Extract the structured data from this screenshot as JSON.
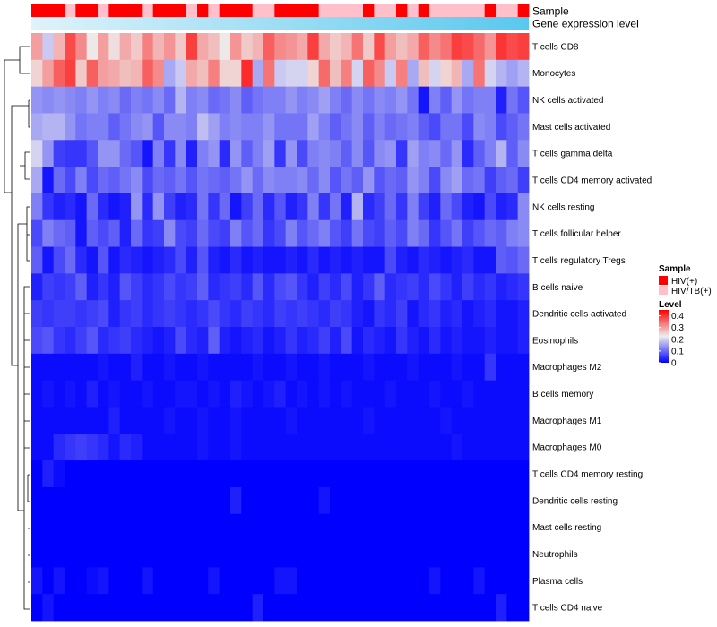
{
  "chart_data": {
    "type": "heatmap",
    "title": "",
    "annotations": [
      {
        "name": "Sample",
        "type": "categorical"
      },
      {
        "name": "Gene expression level",
        "type": "gradient",
        "from": "#dff3fb",
        "to": "#5ac8ee"
      }
    ],
    "rows": [
      "T cells CD8",
      "Monocytes",
      "NK cells activated",
      "Mast cells activated",
      "T cells gamma delta",
      "T cells CD4 memory activated",
      "NK cells resting",
      "T cells follicular helper",
      "T cells regulatory  Tregs",
      "B cells naive",
      "Dendritic cells activated",
      "Eosinophils",
      "Macrophages M2",
      "B cells memory",
      "Macrophages M1",
      "Macrophages M0",
      "T cells CD4 memory resting",
      "Dendritic cells resting",
      "Mast cells resting",
      "Neutrophils",
      "Plasma cells",
      "T cells CD4 naive"
    ],
    "sample_groups": "HHHLHHLHHHLHHHLHLHHHLLHHHHLLLLHLLHLHLLLLLHLLH",
    "legend": {
      "sample": {
        "title": "Sample",
        "entries": [
          {
            "label": "HIV(+)",
            "color": "#ff0000"
          },
          {
            "label": "HIV/TB(+)",
            "color": "#ffc0cb"
          }
        ]
      },
      "level": {
        "title": "Level",
        "ticks": [
          "0.4",
          "0.3",
          "0.2",
          "0.1",
          "0"
        ],
        "range": [
          0,
          0.45
        ],
        "colors": [
          "#0000ff",
          "#eeeeee",
          "#ff0000"
        ]
      }
    },
    "values": [
      [
        0.3,
        0.19,
        0.28,
        0.38,
        0.32,
        0.23,
        0.3,
        0.24,
        0.29,
        0.26,
        0.33,
        0.28,
        0.31,
        0.26,
        0.39,
        0.29,
        0.27,
        0.23,
        0.31,
        0.26,
        0.28,
        0.36,
        0.32,
        0.31,
        0.29,
        0.39,
        0.29,
        0.26,
        0.28,
        0.34,
        0.26,
        0.38,
        0.3,
        0.27,
        0.29,
        0.36,
        0.32,
        0.34,
        0.39,
        0.38,
        0.35,
        0.31,
        0.4,
        0.38,
        0.39
      ],
      [
        0.25,
        0.3,
        0.36,
        0.39,
        0.26,
        0.36,
        0.3,
        0.29,
        0.27,
        0.28,
        0.36,
        0.32,
        0.16,
        0.19,
        0.29,
        0.27,
        0.33,
        0.25,
        0.25,
        0.41,
        0.16,
        0.34,
        0.19,
        0.2,
        0.2,
        0.25,
        0.35,
        0.27,
        0.33,
        0.2,
        0.36,
        0.32,
        0.19,
        0.33,
        0.16,
        0.27,
        0.2,
        0.25,
        0.28,
        0.16,
        0.34,
        0.2,
        0.17,
        0.15,
        0.17
      ],
      [
        0.14,
        0.13,
        0.14,
        0.13,
        0.12,
        0.14,
        0.12,
        0.13,
        0.1,
        0.12,
        0.11,
        0.13,
        0.1,
        0.17,
        0.12,
        0.13,
        0.1,
        0.11,
        0.13,
        0.09,
        0.11,
        0.12,
        0.12,
        0.14,
        0.12,
        0.13,
        0.15,
        0.12,
        0.1,
        0.13,
        0.11,
        0.13,
        0.12,
        0.14,
        0.11,
        0.02,
        0.12,
        0.09,
        0.14,
        0.11,
        0.12,
        0.12,
        0.03,
        0.11,
        0.08
      ],
      [
        0.16,
        0.17,
        0.17,
        0.14,
        0.11,
        0.12,
        0.12,
        0.09,
        0.11,
        0.13,
        0.14,
        0.08,
        0.13,
        0.13,
        0.12,
        0.18,
        0.15,
        0.12,
        0.13,
        0.12,
        0.12,
        0.14,
        0.11,
        0.11,
        0.11,
        0.15,
        0.12,
        0.09,
        0.11,
        0.13,
        0.09,
        0.12,
        0.1,
        0.11,
        0.12,
        0.09,
        0.07,
        0.11,
        0.11,
        0.07,
        0.13,
        0.12,
        0.07,
        0.09,
        0.11
      ],
      [
        0.2,
        0.14,
        0.06,
        0.05,
        0.05,
        0.08,
        0.14,
        0.14,
        0.1,
        0.08,
        0.02,
        0.12,
        0.05,
        0.13,
        0.03,
        0.12,
        0.14,
        0.04,
        0.14,
        0.09,
        0.12,
        0.15,
        0.05,
        0.14,
        0.07,
        0.12,
        0.13,
        0.12,
        0.09,
        0.13,
        0.08,
        0.13,
        0.14,
        0.05,
        0.15,
        0.12,
        0.13,
        0.1,
        0.14,
        0.04,
        0.09,
        0.12,
        0.17,
        0.09,
        0.13
      ],
      [
        0.16,
        0.02,
        0.1,
        0.07,
        0.12,
        0.07,
        0.1,
        0.09,
        0.11,
        0.13,
        0.07,
        0.1,
        0.09,
        0.11,
        0.08,
        0.11,
        0.1,
        0.09,
        0.11,
        0.14,
        0.1,
        0.13,
        0.12,
        0.12,
        0.13,
        0.1,
        0.13,
        0.08,
        0.11,
        0.09,
        0.14,
        0.08,
        0.1,
        0.09,
        0.14,
        0.12,
        0.07,
        0.13,
        0.15,
        0.1,
        0.11,
        0.06,
        0.09,
        0.1,
        0.06
      ],
      [
        0.12,
        0.05,
        0.03,
        0.04,
        0.02,
        0.1,
        0.04,
        0.02,
        0.03,
        0.14,
        0.04,
        0.14,
        0.06,
        0.03,
        0.04,
        0.11,
        0.05,
        0.1,
        0.02,
        0.06,
        0.1,
        0.04,
        0.08,
        0.03,
        0.05,
        0.12,
        0.05,
        0.11,
        0.03,
        0.17,
        0.04,
        0.06,
        0.1,
        0.05,
        0.12,
        0.06,
        0.03,
        0.1,
        0.07,
        0.03,
        0.02,
        0.07,
        0.03,
        0.04,
        0.13
      ],
      [
        0.07,
        0.12,
        0.1,
        0.09,
        0.02,
        0.09,
        0.07,
        0.09,
        0.03,
        0.1,
        0.05,
        0.06,
        0.13,
        0.07,
        0.06,
        0.1,
        0.07,
        0.06,
        0.12,
        0.08,
        0.1,
        0.05,
        0.07,
        0.12,
        0.08,
        0.1,
        0.12,
        0.08,
        0.06,
        0.11,
        0.07,
        0.06,
        0.09,
        0.07,
        0.12,
        0.1,
        0.05,
        0.08,
        0.11,
        0.06,
        0.08,
        0.1,
        0.09,
        0.12,
        0.13
      ],
      [
        0.09,
        0.02,
        0.07,
        0.1,
        0.04,
        0.02,
        0.08,
        0.02,
        0.04,
        0.03,
        0.02,
        0.03,
        0.04,
        0.07,
        0.03,
        0.08,
        0.03,
        0.02,
        0.04,
        0.02,
        0.03,
        0.02,
        0.02,
        0.03,
        0.02,
        0.04,
        0.02,
        0.03,
        0.02,
        0.03,
        0.02,
        0.02,
        0.07,
        0.03,
        0.02,
        0.04,
        0.03,
        0.02,
        0.03,
        0.04,
        0.02,
        0.02,
        0.09,
        0.08,
        0.1
      ],
      [
        0.03,
        0.06,
        0.05,
        0.06,
        0.09,
        0.03,
        0.05,
        0.03,
        0.08,
        0.06,
        0.04,
        0.05,
        0.07,
        0.05,
        0.06,
        0.09,
        0.04,
        0.05,
        0.06,
        0.04,
        0.08,
        0.04,
        0.07,
        0.08,
        0.05,
        0.03,
        0.06,
        0.04,
        0.07,
        0.03,
        0.05,
        0.09,
        0.04,
        0.05,
        0.06,
        0.04,
        0.07,
        0.05,
        0.03,
        0.06,
        0.04,
        0.05,
        0.03,
        0.04,
        0.05
      ],
      [
        0.06,
        0.05,
        0.06,
        0.06,
        0.05,
        0.06,
        0.07,
        0.03,
        0.05,
        0.06,
        0.04,
        0.05,
        0.06,
        0.05,
        0.04,
        0.05,
        0.07,
        0.05,
        0.04,
        0.06,
        0.05,
        0.04,
        0.06,
        0.05,
        0.06,
        0.05,
        0.04,
        0.06,
        0.05,
        0.03,
        0.02,
        0.05,
        0.04,
        0.06,
        0.02,
        0.04,
        0.05,
        0.03,
        0.04,
        0.02,
        0.03,
        0.04,
        0.02,
        0.02,
        0.03
      ],
      [
        0.07,
        0.08,
        0.05,
        0.04,
        0.06,
        0.08,
        0.04,
        0.05,
        0.06,
        0.04,
        0.03,
        0.02,
        0.03,
        0.07,
        0.04,
        0.03,
        0.09,
        0.03,
        0.02,
        0.03,
        0.04,
        0.02,
        0.03,
        0.05,
        0.03,
        0.04,
        0.06,
        0.03,
        0.07,
        0.02,
        0.04,
        0.03,
        0.02,
        0.05,
        0.03,
        0.02,
        0.04,
        0.02,
        0.03,
        0.02,
        0.02,
        0.03,
        0.02,
        0.02,
        0.03
      ],
      [
        0.01,
        0.01,
        0.01,
        0.01,
        0.01,
        0.01,
        0.02,
        0.01,
        0.01,
        0.03,
        0.01,
        0.01,
        0.02,
        0.01,
        0.01,
        0.02,
        0.01,
        0.01,
        0.01,
        0.01,
        0.02,
        0.01,
        0.01,
        0.02,
        0.01,
        0.01,
        0.02,
        0.01,
        0.01,
        0.01,
        0.02,
        0.01,
        0.01,
        0.01,
        0.02,
        0.01,
        0.01,
        0.01,
        0.02,
        0.01,
        0.01,
        0.05,
        0.01,
        0.01,
        0.01
      ],
      [
        0.01,
        0.02,
        0.01,
        0.02,
        0.01,
        0.03,
        0.01,
        0.02,
        0.01,
        0.01,
        0.02,
        0.01,
        0.01,
        0.02,
        0.02,
        0.01,
        0.02,
        0.01,
        0.03,
        0.02,
        0.01,
        0.02,
        0.03,
        0.01,
        0.02,
        0.01,
        0.02,
        0.01,
        0.02,
        0.01,
        0.01,
        0.01,
        0.02,
        0.01,
        0.01,
        0.01,
        0.02,
        0.01,
        0.01,
        0.02,
        0.01,
        0.01,
        0.01,
        0.01,
        0.01
      ],
      [
        0.01,
        0.01,
        0.01,
        0.01,
        0.01,
        0.01,
        0.01,
        0.03,
        0.01,
        0.01,
        0.01,
        0.01,
        0.02,
        0.01,
        0.01,
        0.02,
        0.01,
        0.01,
        0.02,
        0.01,
        0.01,
        0.01,
        0.01,
        0.02,
        0.01,
        0.01,
        0.01,
        0.01,
        0.01,
        0.01,
        0.02,
        0.01,
        0.01,
        0.01,
        0.01,
        0.01,
        0.01,
        0.02,
        0.01,
        0.01,
        0.01,
        0.01,
        0.01,
        0.01,
        0.01
      ],
      [
        0.01,
        0.01,
        0.04,
        0.05,
        0.06,
        0.05,
        0.04,
        0.02,
        0.04,
        0.03,
        0.01,
        0.01,
        0.01,
        0.01,
        0.01,
        0.02,
        0.01,
        0.01,
        0.02,
        0.01,
        0.01,
        0.01,
        0.01,
        0.01,
        0.01,
        0.01,
        0.01,
        0.01,
        0.01,
        0.01,
        0.01,
        0.01,
        0.01,
        0.01,
        0.01,
        0.01,
        0.01,
        0.01,
        0.02,
        0.01,
        0.01,
        0.01,
        0.01,
        0.01,
        0.01
      ],
      [
        0.0,
        0.03,
        0.01,
        0.0,
        0.0,
        0.0,
        0.0,
        0.0,
        0.0,
        0.0,
        0.0,
        0.0,
        0.0,
        0.0,
        0.0,
        0.0,
        0.0,
        0.0,
        0.0,
        0.0,
        0.0,
        0.0,
        0.0,
        0.0,
        0.0,
        0.0,
        0.0,
        0.0,
        0.0,
        0.0,
        0.0,
        0.0,
        0.0,
        0.0,
        0.0,
        0.0,
        0.0,
        0.0,
        0.0,
        0.0,
        0.0,
        0.0,
        0.0,
        0.0,
        0.0
      ],
      [
        0.0,
        0.0,
        0.0,
        0.0,
        0.0,
        0.0,
        0.0,
        0.0,
        0.0,
        0.0,
        0.0,
        0.0,
        0.0,
        0.0,
        0.0,
        0.0,
        0.0,
        0.0,
        0.03,
        0.0,
        0.0,
        0.0,
        0.0,
        0.0,
        0.0,
        0.0,
        0.02,
        0.0,
        0.0,
        0.0,
        0.0,
        0.0,
        0.0,
        0.0,
        0.0,
        0.0,
        0.0,
        0.0,
        0.0,
        0.0,
        0.0,
        0.0,
        0.0,
        0.0,
        0.0
      ],
      [
        0.0,
        0.0,
        0.0,
        0.0,
        0.0,
        0.0,
        0.0,
        0.0,
        0.0,
        0.0,
        0.0,
        0.0,
        0.0,
        0.0,
        0.0,
        0.0,
        0.0,
        0.0,
        0.0,
        0.0,
        0.0,
        0.0,
        0.0,
        0.0,
        0.0,
        0.0,
        0.0,
        0.0,
        0.0,
        0.0,
        0.0,
        0.0,
        0.0,
        0.0,
        0.0,
        0.0,
        0.0,
        0.0,
        0.0,
        0.0,
        0.0,
        0.0,
        0.0,
        0.0,
        0.0
      ],
      [
        0.0,
        0.0,
        0.0,
        0.0,
        0.0,
        0.0,
        0.0,
        0.0,
        0.0,
        0.0,
        0.0,
        0.0,
        0.0,
        0.0,
        0.0,
        0.0,
        0.0,
        0.0,
        0.0,
        0.0,
        0.0,
        0.0,
        0.0,
        0.0,
        0.0,
        0.0,
        0.0,
        0.0,
        0.0,
        0.0,
        0.0,
        0.0,
        0.0,
        0.0,
        0.0,
        0.0,
        0.0,
        0.0,
        0.0,
        0.0,
        0.0,
        0.0,
        0.0,
        0.0,
        0.0
      ],
      [
        0.02,
        0.0,
        0.02,
        0.0,
        0.0,
        0.01,
        0.02,
        0.0,
        0.0,
        0.0,
        0.02,
        0.0,
        0.0,
        0.0,
        0.0,
        0.0,
        0.02,
        0.0,
        0.0,
        0.0,
        0.0,
        0.0,
        0.02,
        0.02,
        0.0,
        0.0,
        0.0,
        0.0,
        0.0,
        0.0,
        0.0,
        0.0,
        0.0,
        0.0,
        0.0,
        0.0,
        0.02,
        0.0,
        0.0,
        0.0,
        0.02,
        0.0,
        0.0,
        0.0,
        0.0
      ],
      [
        0.0,
        0.02,
        0.0,
        0.0,
        0.0,
        0.0,
        0.0,
        0.0,
        0.0,
        0.0,
        0.0,
        0.0,
        0.0,
        0.0,
        0.0,
        0.0,
        0.0,
        0.0,
        0.0,
        0.0,
        0.03,
        0.0,
        0.0,
        0.0,
        0.0,
        0.0,
        0.0,
        0.0,
        0.0,
        0.0,
        0.0,
        0.0,
        0.0,
        0.0,
        0.0,
        0.0,
        0.0,
        0.0,
        0.0,
        0.0,
        0.0,
        0.0,
        0.03,
        0.0,
        0.0
      ]
    ]
  }
}
